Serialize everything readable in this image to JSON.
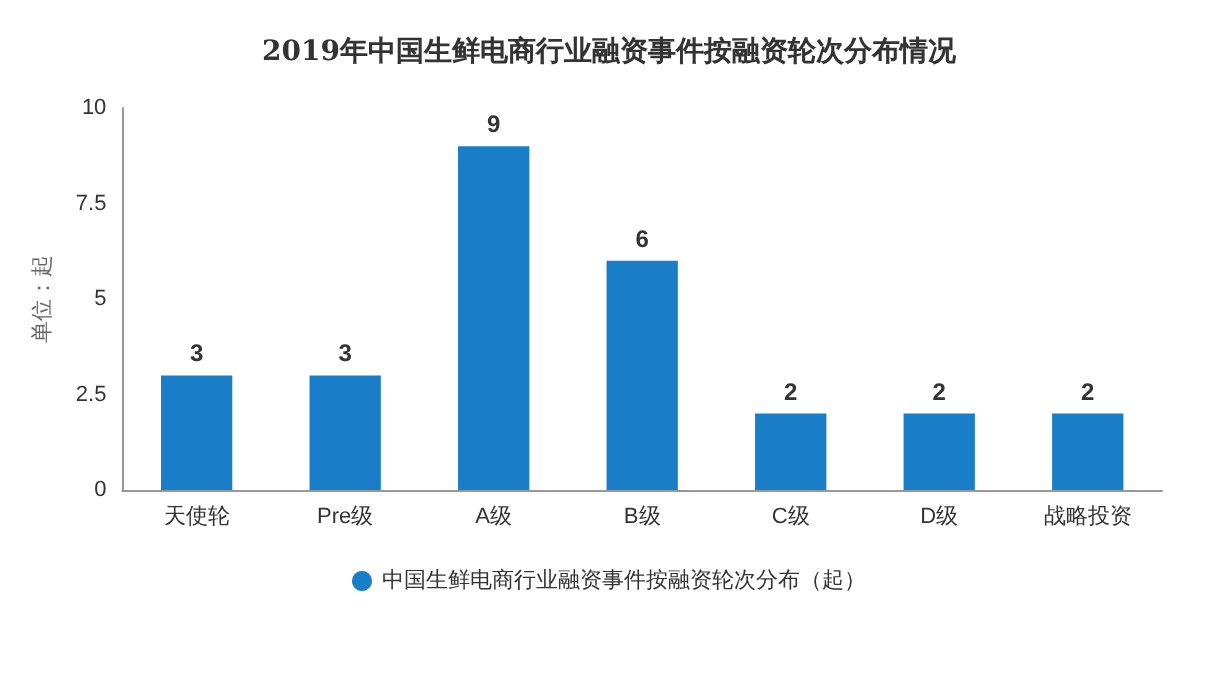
{
  "chart_data": {
    "type": "bar",
    "title": "2019年中国生鲜电商行业融资事件按融资轮次分布情况",
    "ylabel": "单位：起",
    "categories": [
      "天使轮",
      "Pre级",
      "A级",
      "B级",
      "C级",
      "D级",
      "战略投资"
    ],
    "series": [
      {
        "name": "中国生鲜电商行业融资事件按融资轮次分布（起）",
        "color": "#1a7dc8",
        "values": [
          3,
          3,
          9,
          6,
          2,
          2,
          2
        ]
      }
    ],
    "ylim": [
      0,
      10
    ],
    "yticks": [
      0,
      2.5,
      5,
      7.5,
      10
    ],
    "grid": false,
    "legend": "bottom",
    "data_labels": true
  }
}
